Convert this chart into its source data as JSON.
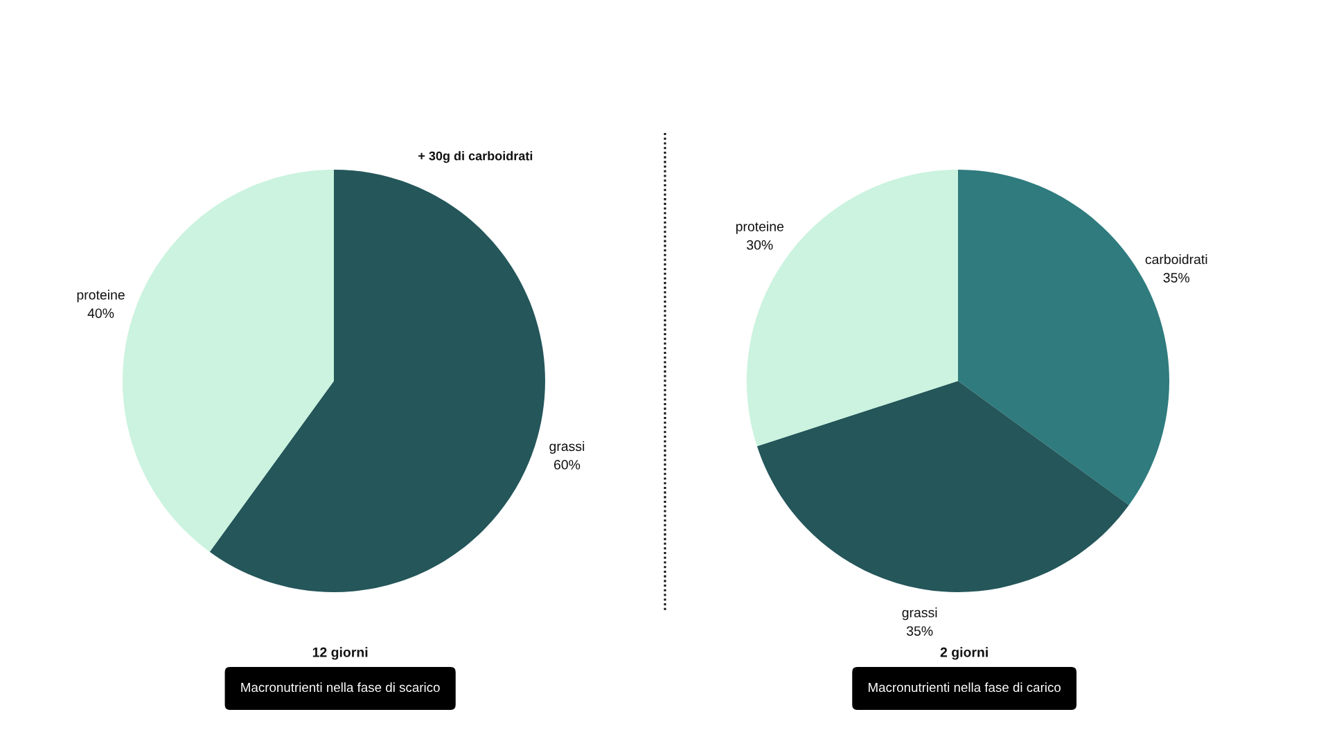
{
  "chart_data": [
    {
      "type": "pie",
      "title": "Macronutrienti nella fase di scarico",
      "subtitle": "12 giorni",
      "categories": [
        "grassi",
        "proteine"
      ],
      "values": [
        60,
        40
      ],
      "colors": [
        "#24565a",
        "#cbf3df"
      ],
      "value_labels": [
        "60%",
        "40%"
      ],
      "annotations": [
        "+ 30g di carboidrati"
      ]
    },
    {
      "type": "pie",
      "title": "Macronutrienti nella fase di carico",
      "subtitle": "2 giorni",
      "categories": [
        "carboidrati",
        "grassi",
        "proteine"
      ],
      "values": [
        35,
        35,
        30
      ],
      "colors": [
        "#2f7b7e",
        "#24565a",
        "#cbf3df"
      ],
      "value_labels": [
        "35%",
        "35%",
        "30%"
      ]
    }
  ]
}
